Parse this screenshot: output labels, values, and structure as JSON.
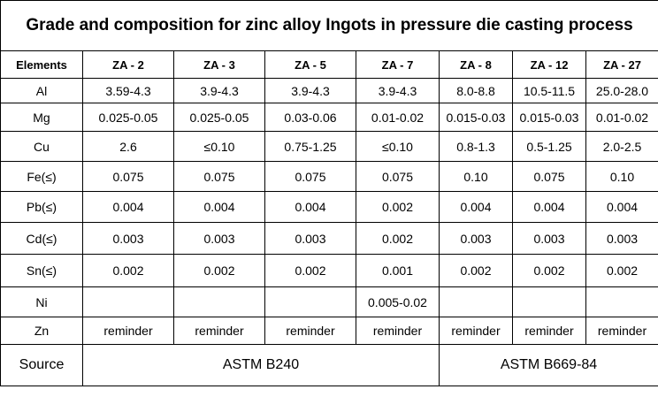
{
  "header": {
    "title": "Grade and composition for zinc alloy Ingots in pressure die casting process"
  },
  "table": {
    "columns": [
      "Elements",
      "ZA - 2",
      "ZA - 3",
      "ZA - 5",
      "ZA - 7",
      "ZA - 8",
      "ZA - 12",
      "ZA - 27"
    ],
    "rows": [
      [
        "Al",
        "3.59-4.3",
        "3.9-4.3",
        "3.9-4.3",
        "3.9-4.3",
        "8.0-8.8",
        "10.5-11.5",
        "25.0-28.0"
      ],
      [
        "Mg",
        "0.025-0.05",
        "0.025-0.05",
        "0.03-0.06",
        "0.01-0.02",
        "0.015-0.03",
        "0.015-0.03",
        "0.01-0.02"
      ],
      [
        "Cu",
        "2.6",
        "≤0.10",
        "0.75-1.25",
        "≤0.10",
        "0.8-1.3",
        "0.5-1.25",
        "2.0-2.5"
      ],
      [
        "Fe(≤)",
        "0.075",
        "0.075",
        "0.075",
        "0.075",
        "0.10",
        "0.075",
        "0.10"
      ],
      [
        "Pb(≤)",
        "0.004",
        "0.004",
        "0.004",
        "0.002",
        "0.004",
        "0.004",
        "0.004"
      ],
      [
        "Cd(≤)",
        "0.003",
        "0.003",
        "0.003",
        "0.002",
        "0.003",
        "0.003",
        "0.003"
      ],
      [
        "Sn(≤)",
        "0.002",
        "0.002",
        "0.002",
        "0.001",
        "0.002",
        "0.002",
        "0.002"
      ],
      [
        "Ni",
        null,
        null,
        null,
        "0.005-0.02",
        null,
        null,
        null
      ],
      [
        "Zn",
        "reminder",
        "reminder",
        "reminder",
        "reminder",
        "reminder",
        "reminder",
        "reminder"
      ]
    ],
    "source": {
      "label": "Source",
      "standards": [
        "ASTM B240",
        "ASTM B669-84"
      ]
    }
  }
}
